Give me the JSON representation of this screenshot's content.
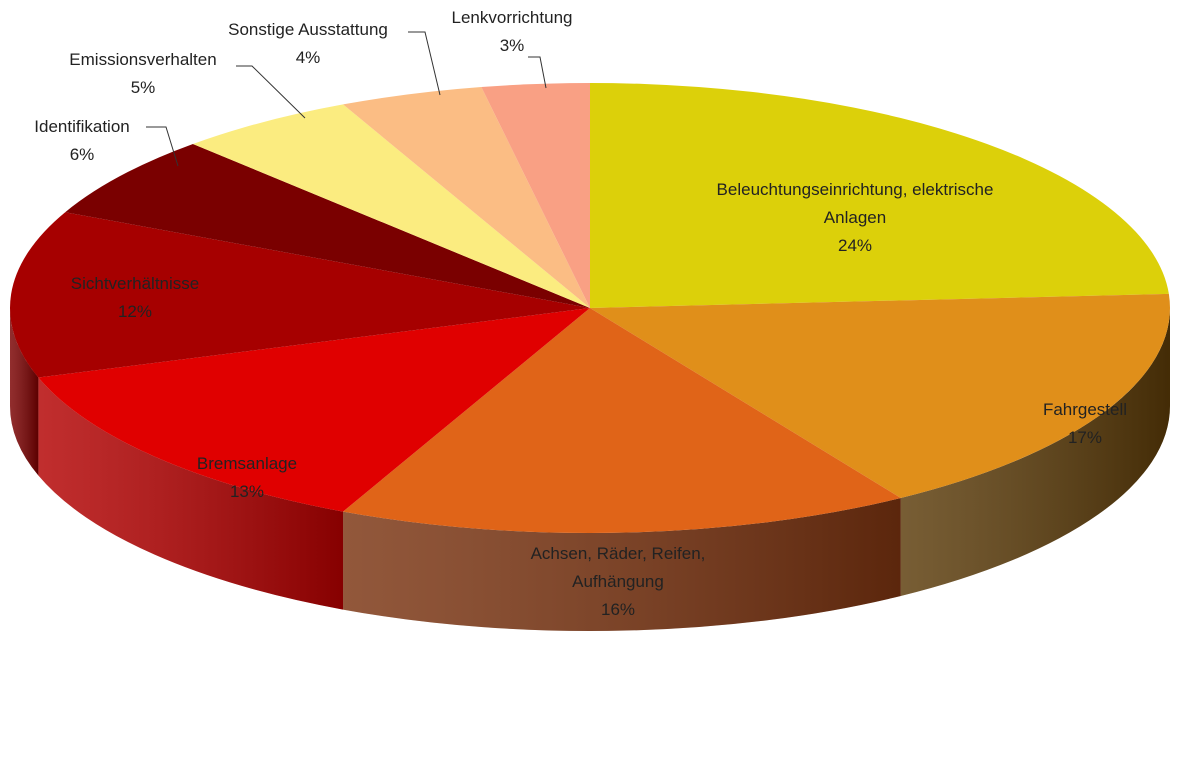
{
  "chart_data": {
    "type": "pie3d",
    "categories": [
      "Beleuchtungseinrichtung, elektrische Anlagen",
      "Fahrgestell",
      "Achsen, Räder, Reifen, Aufhängung",
      "Bremsanlage",
      "Sichtverhältnisse",
      "Identifikation",
      "Emissionsverhalten",
      "Sonstige Ausstattung",
      "Lenkvorrichtung"
    ],
    "values": [
      24,
      17,
      16,
      13,
      12,
      6,
      5,
      4,
      3
    ],
    "value_labels": [
      "24%",
      "17%",
      "16%",
      "13%",
      "12%",
      "6%",
      "5%",
      "4%",
      "3%"
    ],
    "colors": [
      "#dcd00a",
      "#e08f1a",
      "#e06418",
      "#e00000",
      "#a60000",
      "#7a0000",
      "#fbec80",
      "#fbbd84",
      "#f9a084"
    ],
    "side_colors": [
      "#7d7606",
      "#5a3a08",
      "#7a3310",
      "#b30000",
      "#7a0000",
      "#500000",
      "#9a8f40",
      "#9a7040",
      "#9a5a40"
    ]
  }
}
